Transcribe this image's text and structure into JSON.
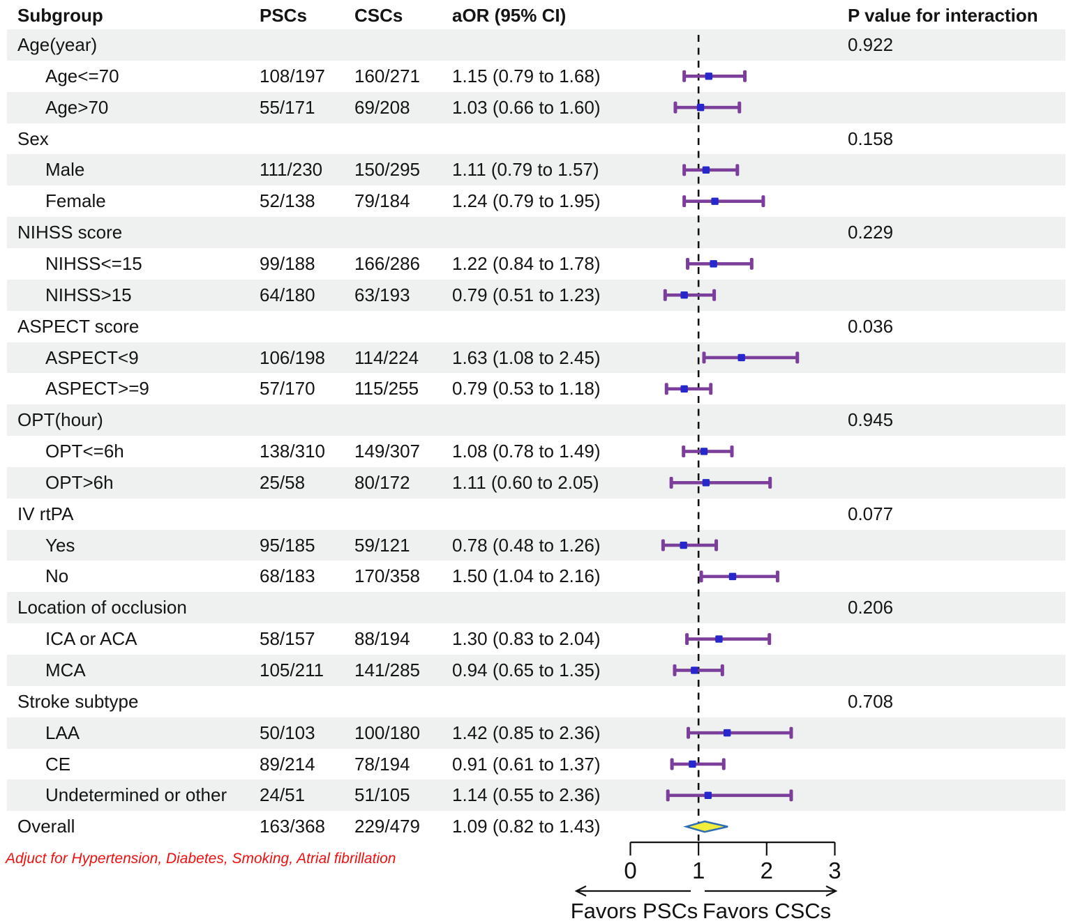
{
  "header": {
    "subgroup": "Subgroup",
    "pscs": "PSCs",
    "cscs": "CSCs",
    "aor": "aOR (95% CI)",
    "p_interaction": "P value for interaction"
  },
  "colors": {
    "stripe": "#eef1f0",
    "ci_purple": "#7b3e9b",
    "marker_blue": "#2727cb",
    "diamond_fill": "#f2ee3e",
    "diamond_stroke": "#2f6cb3",
    "footnote_red": "#f01010",
    "axis_black": "#111111"
  },
  "chart_data": {
    "type": "forest",
    "x_axis": {
      "min": 0,
      "max": 3,
      "ticks": [
        0,
        1,
        2,
        3
      ],
      "refline": 1
    },
    "favors_left": "Favors PSCs",
    "favors_right": "Favors CSCs",
    "footnote": "Adjuct for Hypertension, Diabetes, Smoking, Atrial fibrillation",
    "rows": [
      {
        "label": "Age(year)",
        "indent": false,
        "psc": "",
        "csc": "",
        "aor": "",
        "p": "0.922",
        "est": null,
        "lo": null,
        "hi": null,
        "marker": null,
        "shaded": true
      },
      {
        "label": "Age<=70",
        "indent": true,
        "psc": "108/197",
        "csc": "160/271",
        "aor": "1.15 (0.79 to 1.68)",
        "p": "",
        "est": 1.15,
        "lo": 0.79,
        "hi": 1.68,
        "marker": "square",
        "shaded": false
      },
      {
        "label": "Age>70",
        "indent": true,
        "psc": "55/171",
        "csc": "69/208",
        "aor": "1.03 (0.66 to 1.60)",
        "p": "",
        "est": 1.03,
        "lo": 0.66,
        "hi": 1.6,
        "marker": "square",
        "shaded": true
      },
      {
        "label": "Sex",
        "indent": false,
        "psc": "",
        "csc": "",
        "aor": "",
        "p": "0.158",
        "est": null,
        "lo": null,
        "hi": null,
        "marker": null,
        "shaded": false
      },
      {
        "label": "Male",
        "indent": true,
        "psc": "111/230",
        "csc": "150/295",
        "aor": "1.11 (0.79 to 1.57)",
        "p": "",
        "est": 1.11,
        "lo": 0.79,
        "hi": 1.57,
        "marker": "square",
        "shaded": true
      },
      {
        "label": "Female",
        "indent": true,
        "psc": "52/138",
        "csc": "79/184",
        "aor": "1.24 (0.79 to 1.95)",
        "p": "",
        "est": 1.24,
        "lo": 0.79,
        "hi": 1.95,
        "marker": "square",
        "shaded": false
      },
      {
        "label": "NIHSS score",
        "indent": false,
        "psc": "",
        "csc": "",
        "aor": "",
        "p": "0.229",
        "est": null,
        "lo": null,
        "hi": null,
        "marker": null,
        "shaded": true
      },
      {
        "label": "NIHSS<=15",
        "indent": true,
        "psc": "99/188",
        "csc": "166/286",
        "aor": "1.22 (0.84 to 1.78)",
        "p": "",
        "est": 1.22,
        "lo": 0.84,
        "hi": 1.78,
        "marker": "square",
        "shaded": false
      },
      {
        "label": "NIHSS>15",
        "indent": true,
        "psc": "64/180",
        "csc": "63/193",
        "aor": "0.79 (0.51 to 1.23)",
        "p": "",
        "est": 0.79,
        "lo": 0.51,
        "hi": 1.23,
        "marker": "square",
        "shaded": true
      },
      {
        "label": "ASPECT score",
        "indent": false,
        "psc": "",
        "csc": "",
        "aor": "",
        "p": "0.036",
        "est": null,
        "lo": null,
        "hi": null,
        "marker": null,
        "shaded": false
      },
      {
        "label": "ASPECT<9",
        "indent": true,
        "psc": "106/198",
        "csc": "114/224",
        "aor": "1.63 (1.08 to 2.45)",
        "p": "",
        "est": 1.63,
        "lo": 1.08,
        "hi": 2.45,
        "marker": "square",
        "shaded": true
      },
      {
        "label": "ASPECT>=9",
        "indent": true,
        "psc": "57/170",
        "csc": "115/255",
        "aor": "0.79 (0.53 to 1.18)",
        "p": "",
        "est": 0.79,
        "lo": 0.53,
        "hi": 1.18,
        "marker": "square",
        "shaded": false
      },
      {
        "label": "OPT(hour)",
        "indent": false,
        "psc": "",
        "csc": "",
        "aor": "",
        "p": "0.945",
        "est": null,
        "lo": null,
        "hi": null,
        "marker": null,
        "shaded": true
      },
      {
        "label": "OPT<=6h",
        "indent": true,
        "psc": "138/310",
        "csc": "149/307",
        "aor": "1.08 (0.78 to 1.49)",
        "p": "",
        "est": 1.08,
        "lo": 0.78,
        "hi": 1.49,
        "marker": "square",
        "shaded": false
      },
      {
        "label": "OPT>6h",
        "indent": true,
        "psc": "25/58",
        "csc": "80/172",
        "aor": "1.11 (0.60 to 2.05)",
        "p": "",
        "est": 1.11,
        "lo": 0.6,
        "hi": 2.05,
        "marker": "square",
        "shaded": true
      },
      {
        "label": "IV rtPA",
        "indent": false,
        "psc": "",
        "csc": "",
        "aor": "",
        "p": "0.077",
        "est": null,
        "lo": null,
        "hi": null,
        "marker": null,
        "shaded": false
      },
      {
        "label": "Yes",
        "indent": true,
        "psc": "95/185",
        "csc": "59/121",
        "aor": "0.78 (0.48 to 1.26)",
        "p": "",
        "est": 0.78,
        "lo": 0.48,
        "hi": 1.26,
        "marker": "square",
        "shaded": true
      },
      {
        "label": "No",
        "indent": true,
        "psc": "68/183",
        "csc": "170/358",
        "aor": "1.50 (1.04 to 2.16)",
        "p": "",
        "est": 1.5,
        "lo": 1.04,
        "hi": 2.16,
        "marker": "square",
        "shaded": false
      },
      {
        "label": "Location of occlusion",
        "indent": false,
        "psc": "",
        "csc": "",
        "aor": "",
        "p": "0.206",
        "est": null,
        "lo": null,
        "hi": null,
        "marker": null,
        "shaded": true
      },
      {
        "label": "ICA or ACA",
        "indent": true,
        "psc": "58/157",
        "csc": "88/194",
        "aor": "1.30 (0.83 to 2.04)",
        "p": "",
        "est": 1.3,
        "lo": 0.83,
        "hi": 2.04,
        "marker": "square",
        "shaded": false
      },
      {
        "label": "MCA",
        "indent": true,
        "psc": "105/211",
        "csc": "141/285",
        "aor": "0.94 (0.65 to 1.35)",
        "p": "",
        "est": 0.94,
        "lo": 0.65,
        "hi": 1.35,
        "marker": "square",
        "shaded": true
      },
      {
        "label": "Stroke subtype",
        "indent": false,
        "psc": "",
        "csc": "",
        "aor": "",
        "p": "0.708",
        "est": null,
        "lo": null,
        "hi": null,
        "marker": null,
        "shaded": false
      },
      {
        "label": "LAA",
        "indent": true,
        "psc": "50/103",
        "csc": "100/180",
        "aor": "1.42 (0.85 to 2.36)",
        "p": "",
        "est": 1.42,
        "lo": 0.85,
        "hi": 2.36,
        "marker": "square",
        "shaded": true
      },
      {
        "label": "CE",
        "indent": true,
        "psc": "89/214",
        "csc": "78/194",
        "aor": "0.91 (0.61 to 1.37)",
        "p": "",
        "est": 0.91,
        "lo": 0.61,
        "hi": 1.37,
        "marker": "square",
        "shaded": false
      },
      {
        "label": "Undetermined or other",
        "indent": true,
        "psc": "24/51",
        "csc": "51/105",
        "aor": "1.14 (0.55 to 2.36)",
        "p": "",
        "est": 1.14,
        "lo": 0.55,
        "hi": 2.36,
        "marker": "square",
        "shaded": true
      },
      {
        "label": "Overall",
        "indent": false,
        "psc": "163/368",
        "csc": "229/479",
        "aor": "1.09 (0.82 to 1.43)",
        "p": "",
        "est": 1.09,
        "lo": 0.82,
        "hi": 1.43,
        "marker": "diamond",
        "shaded": false
      }
    ]
  }
}
